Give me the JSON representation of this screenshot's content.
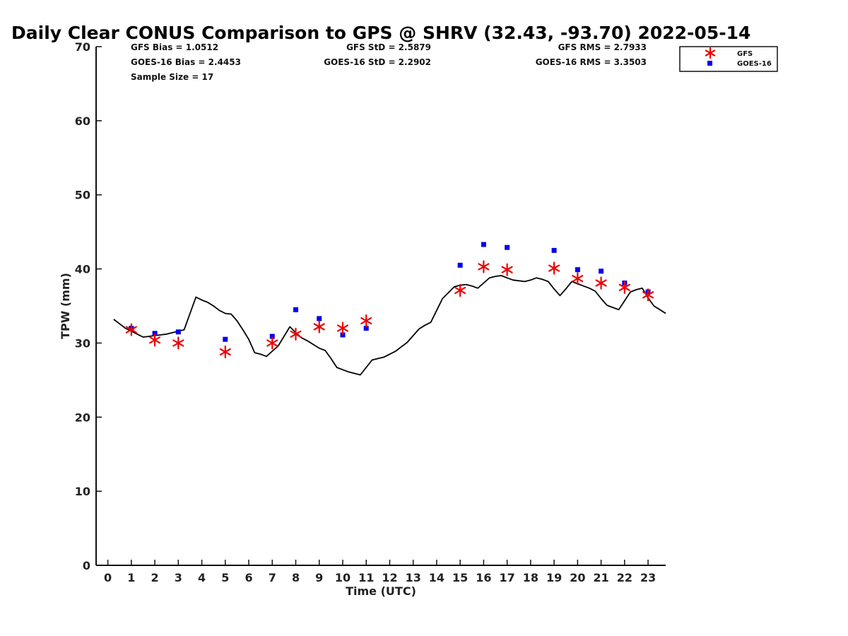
{
  "chart_data": {
    "type": "scatter",
    "title": "Daily Clear CONUS Comparison to GPS @ SHRV (32.43, -93.70) 2022-05-14",
    "xlabel": "Time (UTC)",
    "ylabel": "TPW (mm)",
    "xlim": [
      -0.5,
      23.75
    ],
    "ylim": [
      0,
      70
    ],
    "x_ticks": [
      "0",
      "1",
      "2",
      "3",
      "4",
      "5",
      "6",
      "7",
      "8",
      "9",
      "10",
      "11",
      "12",
      "13",
      "14",
      "15",
      "16",
      "17",
      "18",
      "19",
      "20",
      "21",
      "22",
      "23"
    ],
    "y_ticks": [
      "0",
      "10",
      "20",
      "30",
      "40",
      "50",
      "60",
      "70"
    ],
    "grid": false,
    "legend_position": "top-right",
    "stats": {
      "gfs_bias": "GFS Bias = 1.0512",
      "goes_bias": "GOES-16 Bias = 2.4453",
      "sample_size": "Sample Size = 17",
      "gfs_std": "GFS StD = 2.5879",
      "goes_std": "GOES-16 StD = 2.2902",
      "gfs_rms": "GFS RMS = 2.7933",
      "goes_rms": "GOES-16 RMS = 3.3503"
    },
    "series": [
      {
        "name": "GPS",
        "style": "line",
        "color": "#000000",
        "x": [
          0.25,
          0.5,
          0.75,
          1,
          1.25,
          1.5,
          1.75,
          2,
          2.25,
          2.5,
          2.75,
          3,
          3.25,
          3.5,
          3.75,
          4,
          4.25,
          4.5,
          4.75,
          5,
          5.25,
          5.5,
          5.75,
          6,
          6.25,
          6.5,
          6.75,
          7,
          7.25,
          7.5,
          7.75,
          8,
          8.25,
          8.5,
          8.75,
          9,
          9.25,
          9.5,
          9.75,
          10,
          10.25,
          10.5,
          10.75,
          11,
          11.25,
          11.5,
          11.75,
          12,
          12.25,
          12.5,
          12.75,
          13,
          13.25,
          13.5,
          13.75,
          14,
          14.25,
          14.5,
          14.75,
          15,
          15.25,
          15.5,
          15.75,
          16,
          16.25,
          16.5,
          16.75,
          17,
          17.25,
          17.5,
          17.75,
          18,
          18.25,
          18.5,
          18.75,
          19,
          19.25,
          19.5,
          19.75,
          20,
          20.25,
          20.5,
          20.75,
          21,
          21.25,
          21.5,
          21.75,
          22,
          22.25,
          22.5,
          22.75,
          23,
          23.25,
          23.5,
          23.75
        ],
        "y": [
          33.2,
          32.6,
          32.0,
          31.6,
          31.2,
          30.8,
          30.9,
          31.0,
          31.1,
          31.2,
          31.4,
          31.6,
          31.8,
          34.0,
          36.2,
          35.8,
          35.5,
          35.0,
          34.4,
          34.0,
          33.9,
          33.0,
          31.8,
          30.5,
          28.7,
          28.5,
          28.2,
          28.9,
          29.6,
          30.9,
          32.2,
          31.4,
          30.7,
          30.3,
          29.8,
          29.3,
          29.0,
          27.9,
          26.7,
          26.4,
          26.1,
          25.9,
          25.7,
          26.7,
          27.7,
          27.9,
          28.1,
          28.5,
          28.9,
          29.5,
          30.1,
          31.0,
          31.9,
          32.4,
          32.8,
          34.4,
          36.0,
          36.8,
          37.6,
          37.8,
          37.9,
          37.7,
          37.4,
          38.1,
          38.8,
          39.0,
          39.1,
          38.8,
          38.5,
          38.4,
          38.3,
          38.5,
          38.8,
          38.6,
          38.3,
          37.3,
          36.4,
          37.3,
          38.3,
          38.0,
          37.7,
          37.4,
          37.0,
          36.0,
          35.1,
          34.8,
          34.5,
          35.7,
          36.9,
          37.2,
          37.4,
          36.1,
          35.0,
          34.5,
          34.0
        ]
      },
      {
        "name": "GFS",
        "style": "asterisk",
        "color": "#ee0000",
        "x": [
          1,
          2,
          3,
          5,
          7,
          8,
          9,
          10,
          11,
          15,
          16,
          17,
          19,
          20,
          21,
          22,
          23
        ],
        "y": [
          31.8,
          30.4,
          30.0,
          28.8,
          30.0,
          31.2,
          32.2,
          32.0,
          33.0,
          37.1,
          40.3,
          39.9,
          40.1,
          38.7,
          38.1,
          37.5,
          36.5
        ]
      },
      {
        "name": "GOES-16",
        "style": "square",
        "color": "#0000ee",
        "x": [
          1,
          2,
          3,
          5,
          7,
          8,
          9,
          10,
          11,
          15,
          16,
          17,
          19,
          20,
          21,
          22,
          23
        ],
        "y": [
          32.0,
          31.3,
          31.5,
          30.5,
          30.9,
          34.5,
          33.3,
          31.1,
          32.0,
          40.5,
          43.3,
          42.9,
          42.5,
          39.9,
          39.7,
          38.1,
          36.9
        ]
      }
    ]
  }
}
